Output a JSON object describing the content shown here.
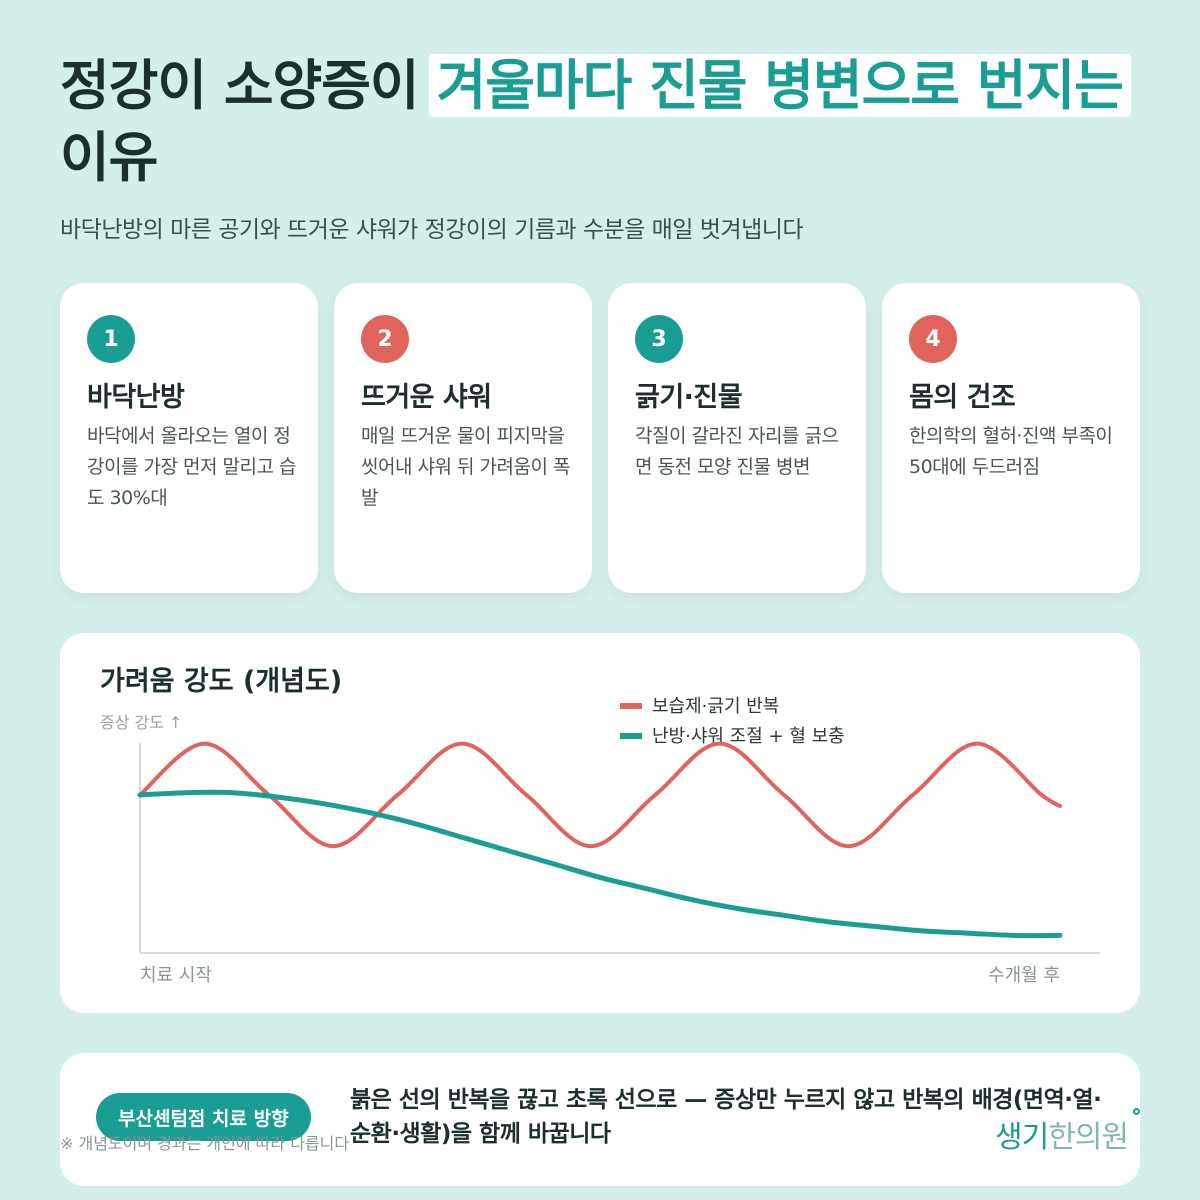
{
  "title": {
    "part1": "정강이 소양증이",
    "part2": "겨울마다 진물 병변으로 번지는",
    "part3": "이유"
  },
  "subtitle": "바닥난방의 마른 공기와 뜨거운 샤워가 정강이의 기름과 수분을 매일 벗겨냅니다",
  "cards": [
    {
      "num": "1",
      "color": "#1a9e93",
      "title": "바닥난방",
      "text": "바닥에서 올라오는 열이 정강이를 가장 먼저 말리고 습도 30%대"
    },
    {
      "num": "2",
      "color": "#e0645c",
      "title": "뜨거운 샤워",
      "text": "매일 뜨거운 물이 피지막을 씻어내 샤워 뒤 가려움이 폭발"
    },
    {
      "num": "3",
      "color": "#1a9e93",
      "title": "긁기·진물",
      "text": "각질이 갈라진 자리를 긁으면 동전 모양 진물 병변"
    },
    {
      "num": "4",
      "color": "#e0645c",
      "title": "몸의 건조",
      "text": "한의학의 혈허·진액 부족이 50대에 두드러짐"
    }
  ],
  "chart_data": {
    "type": "line",
    "title": "가려움 강도 (개념도)",
    "ylabel": "증상 강도 ↑",
    "xlabel_start": "치료 시작",
    "xlabel_end": "수개월 후",
    "xlim": [
      0,
      10
    ],
    "ylim": [
      0,
      10
    ],
    "series": [
      {
        "name": "보습제·긁기 반복",
        "color": "#e0645c",
        "x": [
          0,
          0.7,
          1.4,
          2.1,
          2.8,
          3.5,
          4.2,
          4.9,
          5.6,
          6.3,
          7.0,
          7.7,
          8.4,
          9.1,
          9.8,
          10.0
        ],
        "y": [
          7.0,
          9.3,
          7.0,
          4.7,
          7.0,
          9.3,
          7.0,
          4.7,
          7.0,
          9.3,
          7.0,
          4.7,
          7.0,
          9.3,
          7.0,
          6.5
        ]
      },
      {
        "name": "난방·샤워 조절 + 혈 보충",
        "color": "#1a9e93",
        "x": [
          0,
          0.5,
          1.0,
          1.5,
          2.0,
          2.5,
          3.0,
          3.5,
          4.0,
          4.5,
          5.0,
          5.5,
          6.0,
          6.5,
          7.0,
          7.5,
          8.0,
          8.5,
          9.0,
          9.5,
          10.0
        ],
        "y": [
          7.0,
          7.1,
          7.1,
          6.9,
          6.6,
          6.2,
          5.7,
          5.1,
          4.5,
          3.9,
          3.3,
          2.8,
          2.3,
          1.9,
          1.6,
          1.3,
          1.1,
          0.9,
          0.8,
          0.7,
          0.7
        ]
      }
    ]
  },
  "bottom": {
    "pill": "부산센텀점 치료 방향",
    "text": "붉은 선의 반복을 끊고 초록 선으로 — 증상만 누르지 않고 반복의 배경(면역·열·순환·생활)을 함께 바꿉니다"
  },
  "footnote": "※ 개념도이며 경과는 개인에 따라 다릅니다",
  "logo": {
    "strong": "생기",
    "thin": "한의원"
  }
}
